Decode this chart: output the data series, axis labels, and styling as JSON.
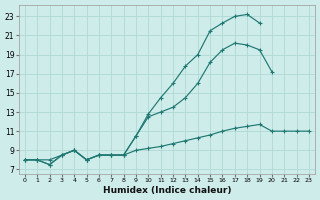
{
  "bg_color": "#ceecea",
  "grid_color": "#b0d8d5",
  "line_color": "#1f7872",
  "xlabel": "Humidex (Indice chaleur)",
  "xlim": [
    -0.5,
    23.5
  ],
  "ylim": [
    6.5,
    24.2
  ],
  "xticks": [
    0,
    1,
    2,
    3,
    4,
    5,
    6,
    7,
    8,
    9,
    10,
    11,
    12,
    13,
    14,
    15,
    16,
    17,
    18,
    19,
    20,
    21,
    22,
    23
  ],
  "yticks": [
    7,
    9,
    11,
    13,
    15,
    17,
    19,
    21,
    23
  ],
  "line1_x": [
    0,
    1,
    2,
    3,
    4,
    5,
    6,
    7,
    8,
    9,
    10,
    11,
    12,
    13,
    14,
    15,
    16,
    17,
    18,
    19,
    20,
    21,
    22,
    23
  ],
  "line1_y": [
    8.0,
    8.0,
    8.0,
    8.5,
    9.0,
    8.0,
    8.5,
    8.5,
    8.5,
    9.0,
    9.2,
    9.4,
    9.7,
    10.0,
    10.3,
    10.6,
    11.0,
    11.3,
    11.5,
    11.7,
    11.0,
    11.0,
    11.0,
    11.0
  ],
  "line2_x": [
    0,
    1,
    2,
    3,
    4,
    5,
    6,
    7,
    8,
    9,
    10,
    11,
    12,
    13,
    14,
    15,
    16,
    17,
    18,
    19,
    20,
    21
  ],
  "line2_y": [
    8.0,
    8.0,
    7.5,
    8.5,
    9.0,
    8.0,
    8.5,
    8.5,
    8.5,
    10.5,
    12.5,
    13.0,
    13.5,
    14.5,
    16.0,
    18.2,
    19.5,
    20.2,
    20.0,
    19.5,
    17.2,
    null
  ],
  "line3_x": [
    0,
    1,
    2,
    3,
    4,
    5,
    6,
    7,
    8,
    9,
    10,
    11,
    12,
    13,
    14,
    15,
    16,
    17,
    18,
    19,
    20
  ],
  "line3_y": [
    8.0,
    8.0,
    7.5,
    8.5,
    9.0,
    8.0,
    8.5,
    8.5,
    8.5,
    10.5,
    12.8,
    14.5,
    16.0,
    17.8,
    19.0,
    21.5,
    22.3,
    23.0,
    23.2,
    22.3,
    null
  ]
}
